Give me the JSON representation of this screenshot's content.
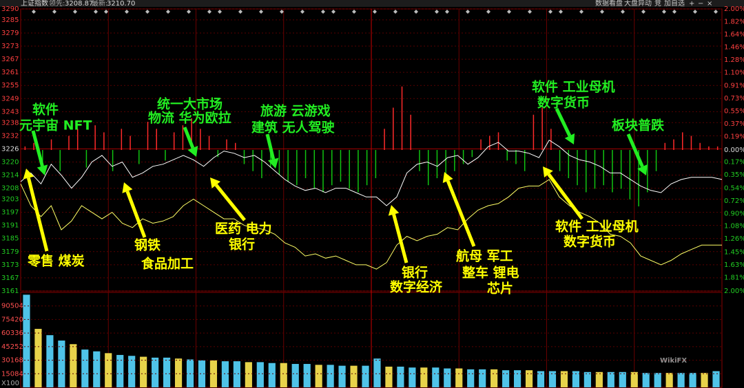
{
  "header": {
    "title": "上证指数",
    "lead_label": "领先:",
    "lead_value": "3208.87",
    "last_label": "最新:",
    "last_value": "3210.70",
    "buttons": [
      "数据看盘",
      "大盘异动",
      "竞",
      "加自选"
    ]
  },
  "chart_data": {
    "type": "line",
    "ylim": [
      3161,
      3290
    ],
    "yticks": [
      3290,
      3285,
      3279,
      3273,
      3267,
      3261,
      3255,
      3249,
      3243,
      3238,
      3232,
      3226,
      3220,
      3214,
      3208,
      3203,
      3197,
      3191,
      3185,
      3179,
      3173,
      3167,
      3161
    ],
    "y2lim": [
      -2,
      2
    ],
    "y2ticks": [
      {
        "value": 2,
        "label": "2.00%"
      },
      {
        "value": 1.82,
        "label": "1.82%"
      },
      {
        "value": 1.64,
        "label": "1.64%"
      },
      {
        "value": 1.46,
        "label": "1.46%"
      },
      {
        "value": 1.28,
        "label": "1.28%"
      },
      {
        "value": 1.1,
        "label": "1.10%"
      },
      {
        "value": 0.91,
        "label": "0.91%"
      },
      {
        "value": 0.73,
        "label": "0.73%"
      },
      {
        "value": 0.55,
        "label": "0.55%"
      },
      {
        "value": 0.37,
        "label": "0.37%"
      },
      {
        "value": 0.19,
        "label": "0.19%"
      },
      {
        "value": 0,
        "label": "0.00%"
      },
      {
        "value": -0.17,
        "label": "0.17%"
      },
      {
        "value": -0.35,
        "label": "0.35%"
      },
      {
        "value": -0.54,
        "label": "0.54%"
      },
      {
        "value": -0.72,
        "label": "0.72%"
      },
      {
        "value": -0.9,
        "label": "0.90%"
      },
      {
        "value": -1.08,
        "label": "1.08%"
      },
      {
        "value": -1.26,
        "label": "1.26%"
      },
      {
        "value": -1.45,
        "label": "1.45%"
      },
      {
        "value": -1.63,
        "label": "1.63%"
      },
      {
        "value": -1.81,
        "label": "1.81%"
      },
      {
        "value": -2,
        "label": "2.00%"
      }
    ],
    "grid": true,
    "series": [
      {
        "color": "#ffffff",
        "values": [
          3211,
          3215,
          3210,
          3219,
          3214,
          3208,
          3213,
          3220,
          3223,
          3218,
          3220,
          3213,
          3215,
          3218,
          3219,
          3221,
          3223,
          3221,
          3218,
          3222,
          3225,
          3224,
          3222,
          3223,
          3220,
          3216,
          3212,
          3209,
          3207,
          3208,
          3206,
          3208,
          3208,
          3206,
          3204,
          3204,
          3200,
          3204,
          3215,
          3219,
          3220,
          3218,
          3222,
          3223,
          3219,
          3222,
          3227,
          3229,
          3225,
          3225,
          3224,
          3222,
          3230,
          3227,
          3223,
          3221,
          3220,
          3218,
          3215,
          3215,
          3212,
          3209,
          3207,
          3206,
          3210,
          3212,
          3213,
          3213,
          3213,
          3212
        ]
      },
      {
        "color": "#ffff66",
        "values": [
          3210,
          3200,
          3195,
          3200,
          3189,
          3193,
          3200,
          3197,
          3194,
          3197,
          3192,
          3190,
          3194,
          3192,
          3193,
          3195,
          3200,
          3203,
          3200,
          3197,
          3194,
          3194,
          3191,
          3190,
          3189,
          3187,
          3183,
          3181,
          3177,
          3178,
          3176,
          3177,
          3175,
          3173,
          3173,
          3171,
          3174,
          3182,
          3186,
          3184,
          3186,
          3187,
          3190,
          3189,
          3194,
          3198,
          3200,
          3201,
          3204,
          3208,
          3209,
          3209,
          3212,
          3204,
          3200,
          3197,
          3195,
          3192,
          3187,
          3186,
          3183,
          3177,
          3175,
          3173,
          3175,
          3178,
          3180,
          3182,
          3182,
          3182
        ]
      }
    ],
    "breadth": {
      "axis": "y2",
      "up_color": "#ff2a2a",
      "down_color": "#11c411",
      "values": [
        0.05,
        0.1,
        -0.2,
        0.15,
        -0.3,
        0.2,
        0.3,
        -0.25,
        0.35,
        0.25,
        -0.3,
        0.3,
        0.2,
        -0.2,
        0.4,
        0.3,
        -0.15,
        0.25,
        0.35,
        0.45,
        0.3,
        0.2,
        -0.1,
        0.15,
        0.1,
        -0.2,
        -0.3,
        -0.4,
        -0.25,
        -0.35,
        -0.45,
        -0.5,
        -0.4,
        -0.55,
        -0.6,
        -0.5,
        -0.45,
        -0.55,
        -0.6,
        -0.5,
        -0.4,
        0.3,
        0.6,
        0.9,
        0.5,
        -0.3,
        -0.5,
        -0.4,
        -0.35,
        -0.3,
        -0.2,
        -0.1,
        0.15,
        0.2,
        0.25,
        -0.15,
        -0.2,
        -0.3,
        0.5,
        0.6,
        0.3,
        -0.3,
        -0.4,
        -0.5,
        -0.6,
        -0.55,
        -0.5,
        -0.6,
        -0.55,
        -0.7,
        -0.8,
        -0.6,
        -0.3,
        0.1,
        0.15,
        0.25,
        0.2,
        0.1,
        0.05,
        0.05
      ]
    },
    "volume": {
      "color": "#4fc3e8",
      "ylim": [
        0,
        105588
      ],
      "yticks": [
        90504,
        75420,
        60336,
        45252,
        30168,
        15084
      ],
      "unit_label": "X100",
      "values": [
        103000,
        65000,
        58000,
        52000,
        48000,
        42000,
        40000,
        38000,
        36000,
        35000,
        34000,
        33000,
        33000,
        32000,
        31000,
        30000,
        30000,
        29000,
        29000,
        28000,
        28000,
        27000,
        27000,
        26000,
        26000,
        25000,
        25000,
        24000,
        24000,
        24000,
        32000,
        23000,
        23000,
        22000,
        22000,
        22000,
        21000,
        21000,
        20000,
        20000,
        20000,
        19000,
        19000,
        19000,
        18000,
        18000,
        18000,
        18000,
        17000,
        17000,
        17000,
        17000,
        17000,
        16000,
        16000,
        16000,
        16000,
        16000,
        16000,
        18000
      ]
    },
    "annotations": [
      {
        "color": "#22ee22",
        "lines": [
          "软件",
          "元宇宙 NFT"
        ]
      },
      {
        "color": "#22ee22",
        "lines": [
          "统一大市场",
          "物流 华为欧拉"
        ]
      },
      {
        "color": "#22ee22",
        "lines": [
          "旅游 云游戏",
          "建筑 无人驾驶"
        ]
      },
      {
        "color": "#22ee22",
        "lines": [
          "软件 工业母机",
          "数字货币"
        ]
      },
      {
        "color": "#22ee22",
        "lines": [
          "板块普跌"
        ]
      },
      {
        "color": "#ffff00",
        "lines": [
          "零售 煤炭"
        ]
      },
      {
        "color": "#ffff00",
        "lines": [
          "钢铁",
          "食品加工"
        ]
      },
      {
        "color": "#ffff00",
        "lines": [
          "医药 电力",
          "银行"
        ]
      },
      {
        "color": "#ffff00",
        "lines": [
          "银行",
          "数字经济"
        ]
      },
      {
        "color": "#ffff00",
        "lines": [
          "航母 军工",
          "整车 锂电",
          "芯片"
        ]
      },
      {
        "color": "#ffff00",
        "lines": [
          "软件 工业母机",
          "数字货币"
        ]
      }
    ],
    "watermark": "WikiFX"
  }
}
